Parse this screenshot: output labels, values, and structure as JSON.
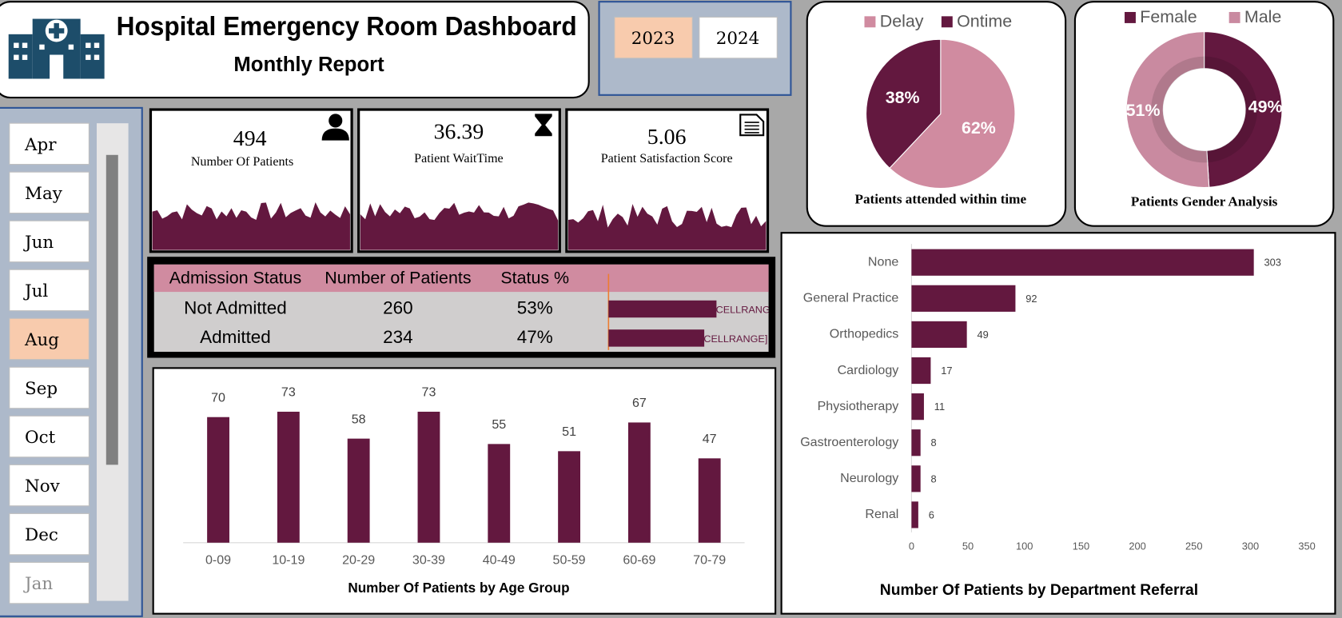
{
  "header": {
    "title": "Hospital Emergency Room Dashboard",
    "subtitle": "Monthly Report"
  },
  "years": {
    "options": [
      "2023",
      "2024"
    ],
    "selected": "2023"
  },
  "months": {
    "options": [
      "Apr",
      "May",
      "Jun",
      "Jul",
      "Aug",
      "Sep",
      "Oct",
      "Nov",
      "Dec",
      "Jan"
    ],
    "selected": "Aug"
  },
  "kpis": [
    {
      "value": 494,
      "label": "Number Of Patients"
    },
    {
      "value": 36.39,
      "label": "Patient WaitTime"
    },
    {
      "value": 5.06,
      "label": "Patient Satisfaction Score"
    }
  ],
  "admission_table": {
    "headers": [
      "Admission Status",
      "Number of Patients",
      "Status %"
    ],
    "rows": [
      {
        "status": "Not Admitted",
        "patients": 260,
        "pct": 53,
        "pct_label": "53%",
        "bar_label": "[CELLRANGE]"
      },
      {
        "status": "Admitted",
        "patients": 234,
        "pct": 47,
        "pct_label": "47%",
        "bar_label": "[CELLRANGE]"
      }
    ]
  },
  "chart_data": [
    {
      "type": "pie",
      "title": "Patients attended within time",
      "categories": [
        "Delay",
        "Ontime"
      ],
      "values": [
        62,
        38
      ],
      "value_labels": [
        "62%",
        "38%"
      ],
      "colors": [
        "#d08ba0",
        "#63183f"
      ]
    },
    {
      "type": "donut",
      "title": "Patients Gender Analysis",
      "categories": [
        "Female",
        "Male"
      ],
      "values": [
        49,
        51
      ],
      "value_labels": [
        "49%",
        "51%"
      ],
      "colors": [
        "#63183f",
        "#c98aa0"
      ]
    },
    {
      "type": "bar",
      "title": "Number Of Patients by Age Group",
      "categories": [
        "0-09",
        "10-19",
        "20-29",
        "30-39",
        "40-49",
        "50-59",
        "60-69",
        "70-79"
      ],
      "values": [
        70,
        73,
        58,
        73,
        55,
        51,
        67,
        47
      ],
      "color": "#63183f"
    },
    {
      "type": "hbar",
      "title": "Number Of Patients by Department Referral",
      "categories": [
        "None",
        "General Practice",
        "Orthopedics",
        "Cardiology",
        "Physiotherapy",
        "Gastroenterology",
        "Neurology",
        "Renal"
      ],
      "values": [
        303,
        92,
        49,
        17,
        11,
        8,
        8,
        6
      ],
      "color": "#63183f",
      "xlim": [
        0,
        350
      ],
      "xticks": [
        0,
        50,
        100,
        150,
        200,
        250,
        300,
        350
      ]
    }
  ]
}
